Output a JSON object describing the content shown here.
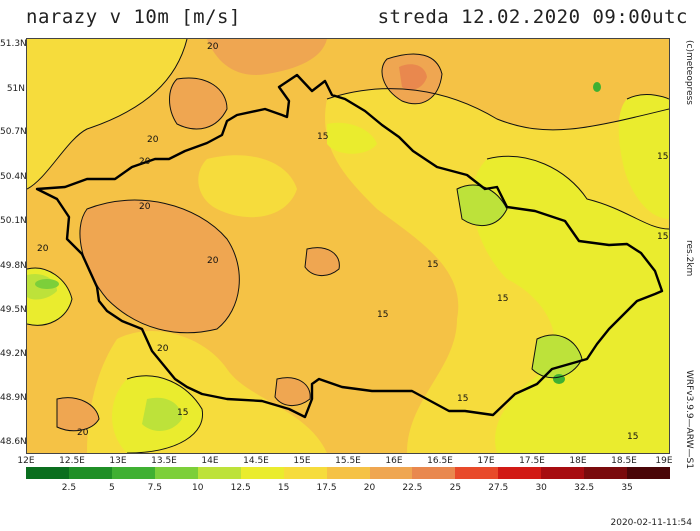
{
  "header": {
    "title": "narazy v 10m [m/s]",
    "valid_time": "streda 12.02.2020 09:00utc"
  },
  "lat_labels": [
    "51.3N",
    "51N",
    "50.7N",
    "50.4N",
    "50.1N",
    "49.8N",
    "49.5N",
    "49.2N",
    "48.9N",
    "48.6N"
  ],
  "lon_labels": [
    "12E",
    "12.5E",
    "13E",
    "13.5E",
    "14E",
    "14.5E",
    "15E",
    "15.5E",
    "16E",
    "16.5E",
    "17E",
    "17.5E",
    "18E",
    "18.5E",
    "19E"
  ],
  "side": {
    "credit": "(c)meteopress",
    "resolution": "res.2km",
    "model": "WRFv3.9.9—ARW—S1"
  },
  "contour_labels": [
    "20",
    "15"
  ],
  "legend": {
    "labels": [
      "2.5",
      "5",
      "7.5",
      "10",
      "12.5",
      "15",
      "17.5",
      "20",
      "22.5",
      "25",
      "27.5",
      "30",
      "32.5",
      "35"
    ],
    "colors": [
      "#0a6e1e",
      "#1f8f26",
      "#3fb032",
      "#7ccf3a",
      "#bde23a",
      "#eaec2e",
      "#f6dc3c",
      "#f5c245",
      "#efa651",
      "#e9884e",
      "#e84a2a",
      "#d11a15",
      "#a70c10",
      "#7a0a0c",
      "#4a0507"
    ]
  },
  "timestamp": "2020-02-11-11:54"
}
